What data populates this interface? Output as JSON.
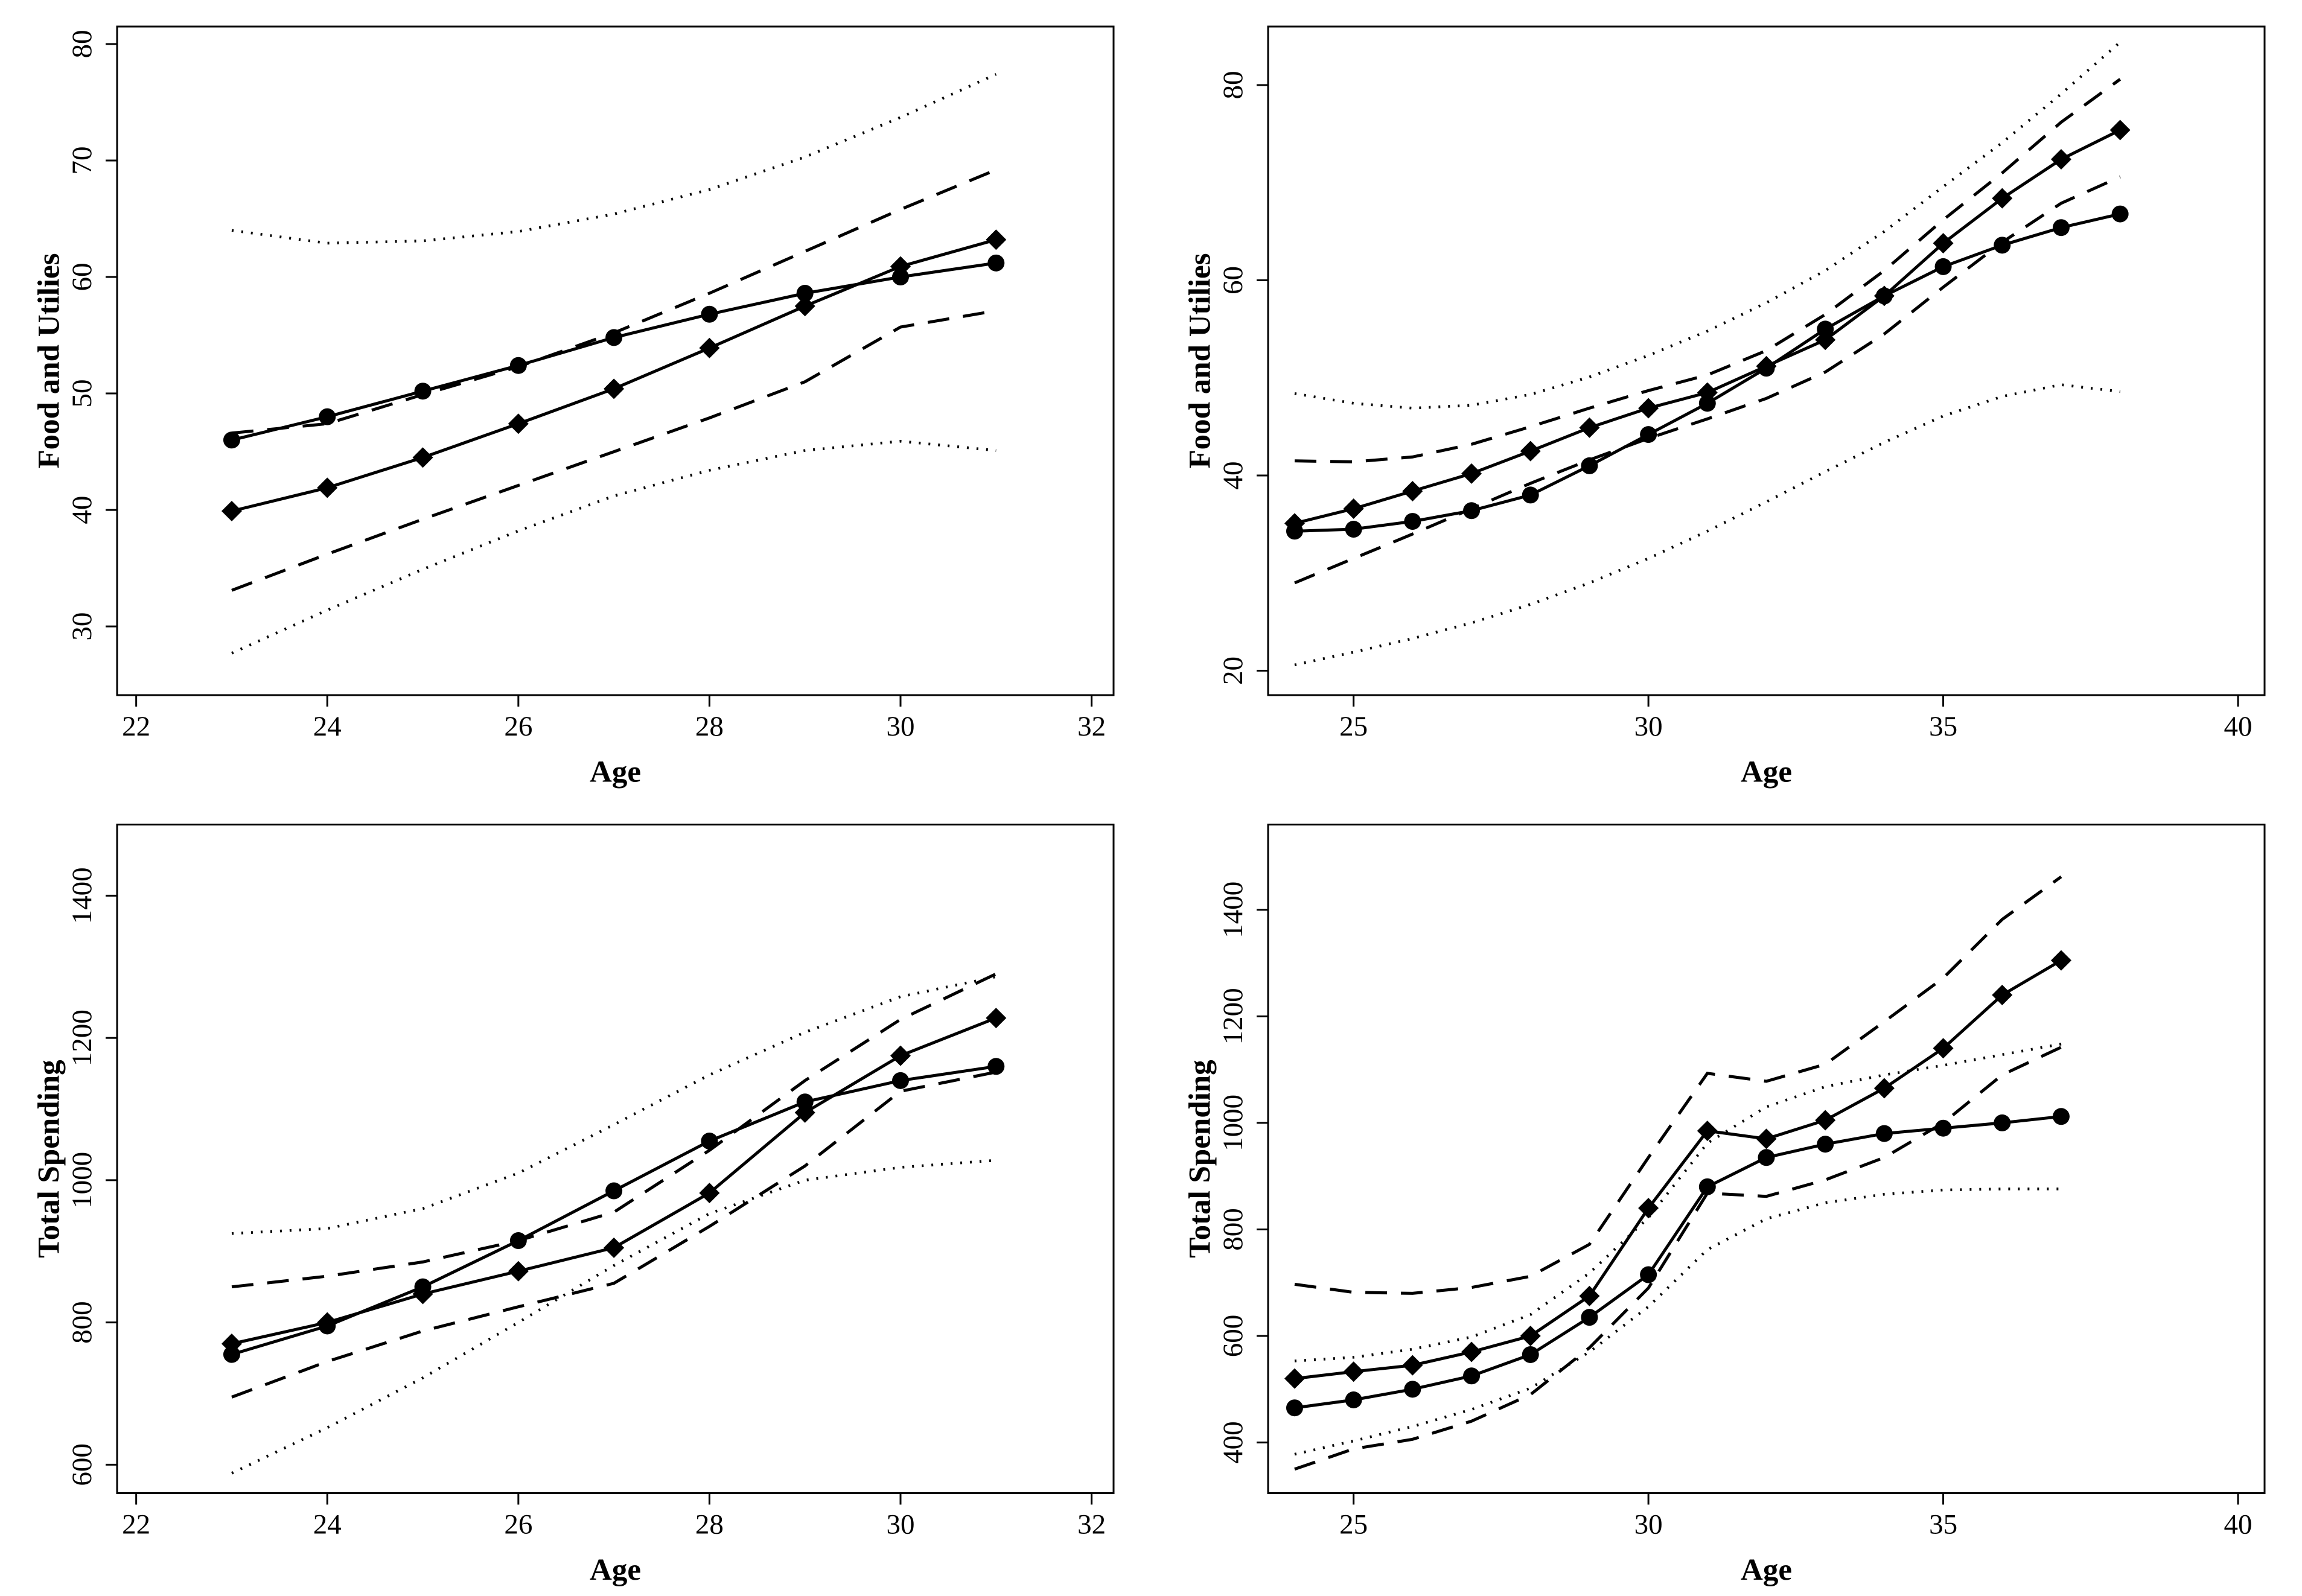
{
  "figure": {
    "background": "#ffffff",
    "ink": "#000000",
    "layout": "2x2-panel-grid",
    "legend": "none",
    "grid_lines": false
  },
  "chart_data": [
    {
      "id": "food-utilities-left",
      "type": "line",
      "title": "",
      "xlabel": "Age",
      "ylabel": "Food and Utilies",
      "xlim": [
        21.8,
        32.23
      ],
      "ylim": [
        24.1,
        81.5
      ],
      "xticks": [
        22,
        24,
        26,
        28,
        30,
        32
      ],
      "yticks": [
        30,
        40,
        50,
        60,
        70,
        80
      ],
      "x": [
        23,
        24,
        25,
        26,
        27,
        28,
        29,
        30,
        31
      ],
      "series": [
        {
          "name": "circle-solid",
          "marker": "circle",
          "line": "solid",
          "values": [
            46.0,
            48.0,
            50.2,
            52.4,
            54.8,
            56.8,
            58.6,
            60.0,
            61.2
          ]
        },
        {
          "name": "diamond-solid",
          "marker": "diamond",
          "line": "solid",
          "values": [
            39.9,
            41.9,
            44.5,
            47.4,
            50.4,
            53.9,
            57.5,
            60.9,
            63.2
          ]
        },
        {
          "name": "dashed-upper-band",
          "marker": "none",
          "line": "dashed",
          "values": [
            46.6,
            47.4,
            49.9,
            52.3,
            55.2,
            58.6,
            62.2,
            65.8,
            69.2
          ]
        },
        {
          "name": "dashed-lower-band",
          "marker": "none",
          "line": "dashed",
          "values": [
            33.1,
            36.2,
            39.2,
            42.1,
            45.0,
            47.9,
            51.0,
            55.7,
            57.1
          ]
        },
        {
          "name": "dotted-upper-band",
          "marker": "none",
          "line": "dotted",
          "values": [
            64.0,
            62.9,
            63.1,
            63.9,
            65.4,
            67.5,
            70.3,
            73.7,
            77.4
          ]
        },
        {
          "name": "dotted-lower-band",
          "marker": "none",
          "line": "dotted",
          "values": [
            27.7,
            31.4,
            34.9,
            38.2,
            41.2,
            43.4,
            45.1,
            45.9,
            45.1
          ]
        }
      ]
    },
    {
      "id": "food-utilities-right",
      "type": "line",
      "title": "",
      "xlabel": "Age",
      "ylabel": "Food and Utilies",
      "xlim": [
        23.55,
        40.45
      ],
      "ylim": [
        17.5,
        86
      ],
      "xticks": [
        25,
        30,
        35,
        40
      ],
      "yticks": [
        20,
        40,
        60,
        80
      ],
      "x": [
        24,
        25,
        26,
        27,
        28,
        29,
        30,
        31,
        32,
        33,
        34,
        35,
        36,
        37,
        38
      ],
      "series": [
        {
          "name": "circle-solid",
          "marker": "circle",
          "line": "solid",
          "values": [
            34.3,
            34.5,
            35.3,
            36.4,
            38.0,
            41.0,
            44.2,
            47.4,
            51.0,
            55.0,
            58.4,
            61.4,
            63.6,
            65.4,
            66.8
          ]
        },
        {
          "name": "diamond-solid",
          "marker": "diamond",
          "line": "solid",
          "values": [
            35.1,
            36.6,
            38.4,
            40.2,
            42.5,
            44.9,
            46.9,
            48.5,
            51.2,
            53.9,
            58.4,
            63.8,
            68.4,
            72.4,
            75.4
          ]
        },
        {
          "name": "dashed-upper-band",
          "marker": "none",
          "line": "dashed",
          "values": [
            41.5,
            41.4,
            41.9,
            43.2,
            45.0,
            46.9,
            48.7,
            50.3,
            52.8,
            56.5,
            61.0,
            66.2,
            71.0,
            76.2,
            80.6
          ]
        },
        {
          "name": "dashed-lower-band",
          "marker": "none",
          "line": "dashed",
          "values": [
            29.0,
            31.5,
            34.0,
            36.6,
            39.2,
            41.6,
            43.8,
            45.8,
            47.9,
            50.6,
            54.5,
            59.3,
            63.9,
            67.9,
            70.6
          ]
        },
        {
          "name": "dotted-upper-band",
          "marker": "none",
          "line": "dotted",
          "values": [
            48.4,
            47.4,
            46.9,
            47.2,
            48.3,
            50.1,
            52.3,
            54.8,
            57.7,
            61.0,
            65.0,
            69.6,
            74.1,
            79.1,
            84.4
          ]
        },
        {
          "name": "dotted-lower-band",
          "marker": "none",
          "line": "dotted",
          "values": [
            20.6,
            21.9,
            23.3,
            24.9,
            26.8,
            29.0,
            31.5,
            34.3,
            37.3,
            40.4,
            43.4,
            46.1,
            48.1,
            49.3,
            48.6
          ]
        }
      ]
    },
    {
      "id": "total-spending-left",
      "type": "line",
      "title": "",
      "xlabel": "Age",
      "ylabel": "Total Spending",
      "xlim": [
        21.8,
        32.23
      ],
      "ylim": [
        560,
        1500
      ],
      "xticks": [
        22,
        24,
        26,
        28,
        30,
        32
      ],
      "yticks": [
        600,
        800,
        1000,
        1200,
        1400
      ],
      "x": [
        23,
        24,
        25,
        26,
        27,
        28,
        29,
        30,
        31
      ],
      "series": [
        {
          "name": "circle-solid",
          "marker": "circle",
          "line": "solid",
          "values": [
            755,
            795,
            850,
            915,
            985,
            1055,
            1110,
            1140,
            1160
          ]
        },
        {
          "name": "diamond-solid",
          "marker": "diamond",
          "line": "solid",
          "values": [
            770,
            800,
            840,
            872,
            905,
            982,
            1095,
            1175,
            1228
          ]
        },
        {
          "name": "dashed-upper-band",
          "marker": "none",
          "line": "dashed",
          "values": [
            850,
            865,
            885,
            915,
            955,
            1042,
            1140,
            1226,
            1290
          ]
        },
        {
          "name": "dashed-lower-band",
          "marker": "none",
          "line": "dashed",
          "values": [
            695,
            745,
            788,
            822,
            855,
            935,
            1020,
            1125,
            1152
          ]
        },
        {
          "name": "dotted-upper-band",
          "marker": "none",
          "line": "dotted",
          "values": [
            925,
            932,
            960,
            1010,
            1078,
            1148,
            1208,
            1258,
            1286
          ]
        },
        {
          "name": "dotted-lower-band",
          "marker": "none",
          "line": "dotted",
          "values": [
            588,
            652,
            722,
            800,
            880,
            953,
            1000,
            1018,
            1028
          ]
        }
      ]
    },
    {
      "id": "total-spending-right",
      "type": "line",
      "title": "",
      "xlabel": "Age",
      "ylabel": "Total Spending",
      "xlim": [
        23.55,
        40.45
      ],
      "ylim": [
        305,
        1560
      ],
      "xticks": [
        25,
        30,
        35,
        40
      ],
      "yticks": [
        400,
        600,
        800,
        1000,
        1200,
        1400
      ],
      "x": [
        24,
        25,
        26,
        27,
        28,
        29,
        30,
        31,
        32,
        33,
        34,
        35,
        36,
        37
      ],
      "series": [
        {
          "name": "circle-solid",
          "marker": "circle",
          "line": "solid",
          "values": [
            465,
            480,
            500,
            525,
            565,
            635,
            715,
            880,
            935,
            960,
            980,
            990,
            1000,
            1012
          ]
        },
        {
          "name": "diamond-solid",
          "marker": "diamond",
          "line": "solid",
          "values": [
            520,
            533,
            545,
            570,
            600,
            675,
            840,
            985,
            970,
            1005,
            1065,
            1140,
            1240,
            1305
          ]
        },
        {
          "name": "dashed-upper-band",
          "marker": "none",
          "line": "dashed",
          "values": [
            697,
            682,
            680,
            691,
            712,
            772,
            935,
            1093,
            1078,
            1110,
            1190,
            1272,
            1382,
            1462
          ]
        },
        {
          "name": "dashed-lower-band",
          "marker": "none",
          "line": "dashed",
          "values": [
            350,
            388,
            406,
            440,
            490,
            578,
            690,
            868,
            862,
            893,
            935,
            1000,
            1090,
            1142
          ]
        },
        {
          "name": "dotted-upper-band",
          "marker": "none",
          "line": "dotted",
          "values": [
            553,
            560,
            575,
            598,
            640,
            718,
            822,
            962,
            1030,
            1068,
            1090,
            1108,
            1128,
            1148
          ]
        },
        {
          "name": "dotted-lower-band",
          "marker": "none",
          "line": "dotted",
          "values": [
            378,
            403,
            430,
            462,
            502,
            570,
            655,
            762,
            820,
            850,
            866,
            874,
            876,
            876
          ]
        }
      ]
    }
  ]
}
